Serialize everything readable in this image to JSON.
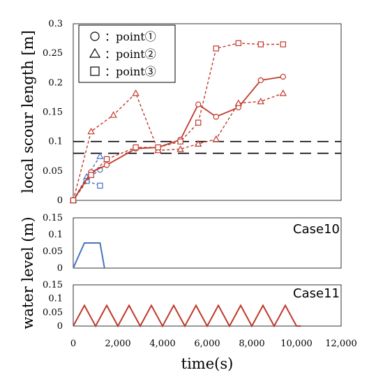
{
  "chart_data": [
    {
      "type": "scatter",
      "ylabel": "local scour length [m]",
      "xlim": [
        0,
        12000
      ],
      "ylim": [
        0,
        0.3
      ],
      "yticks": [
        0,
        0.05,
        0.1,
        0.15,
        0.2,
        0.25,
        0.3
      ],
      "ytick_labels": [
        "0",
        "0.05",
        "0.1",
        "0.15",
        "0.2",
        "0.25",
        "0.3"
      ],
      "reference_lines": [
        0.1,
        0.08
      ],
      "legend": {
        "placement": "top-left",
        "entries": [
          {
            "marker": "circle",
            "label": "：point①"
          },
          {
            "marker": "triangle",
            "label": "：point②"
          },
          {
            "marker": "square",
            "label": "：point③"
          }
        ]
      },
      "series": [
        {
          "group": "Case10",
          "point": 1,
          "marker": "circle",
          "line": "dashed",
          "color": "#4472c4",
          "x": [
            0,
            600,
            1200
          ],
          "y": [
            0,
            0.036,
            0.052
          ]
        },
        {
          "group": "Case10",
          "point": 2,
          "marker": "triangle",
          "line": "dashed",
          "color": "#4472c4",
          "x": [
            0,
            600,
            1200
          ],
          "y": [
            0,
            0.04,
            0.075
          ]
        },
        {
          "group": "Case10",
          "point": 3,
          "marker": "square",
          "line": "dashed",
          "color": "#4472c4",
          "x": [
            0,
            600,
            1200
          ],
          "y": [
            0,
            0.033,
            0.025
          ]
        },
        {
          "group": "Case11",
          "point": 1,
          "marker": "circle",
          "line": "solid",
          "color": "#c0392b",
          "x": [
            0,
            800,
            1500,
            2800,
            3800,
            4800,
            5600,
            6400,
            7400,
            8400,
            9400
          ],
          "y": [
            0,
            0.048,
            0.06,
            0.088,
            0.09,
            0.103,
            0.163,
            0.142,
            0.158,
            0.204,
            0.21
          ]
        },
        {
          "group": "Case11",
          "point": 2,
          "marker": "triangle",
          "line": "dashed",
          "color": "#c0392b",
          "x": [
            0,
            800,
            1800,
            2800,
            3800,
            4800,
            5600,
            6400,
            7400,
            8400,
            9400
          ],
          "y": [
            0,
            0.117,
            0.145,
            0.182,
            0.085,
            0.087,
            0.096,
            0.104,
            0.165,
            0.168,
            0.182
          ]
        },
        {
          "group": "Case11",
          "point": 3,
          "marker": "square",
          "line": "dashed",
          "color": "#c0392b",
          "x": [
            0,
            800,
            1500,
            2800,
            3800,
            4800,
            5600,
            6400,
            7400,
            8400,
            9400
          ],
          "y": [
            0,
            0.043,
            0.07,
            0.09,
            0.09,
            0.1,
            0.132,
            0.258,
            0.267,
            0.265,
            0.265
          ]
        }
      ]
    },
    {
      "type": "line",
      "label": "Case10",
      "color": "#4472c4",
      "ylim": [
        0,
        0.15
      ],
      "yticks": [
        0,
        0.05,
        0.1,
        0.15
      ],
      "ytick_labels": [
        "0",
        "0.05",
        "0.1",
        "0.15"
      ],
      "x": [
        0,
        500,
        1000,
        1200,
        1400
      ],
      "y": [
        0,
        0.075,
        0.075,
        0.075,
        0
      ]
    },
    {
      "type": "line",
      "label": "Case11",
      "color": "#c0392b",
      "ylim": [
        0,
        0.15
      ],
      "yticks": [
        0,
        0.05,
        0.1,
        0.15
      ],
      "ytick_labels": [
        "0",
        "0.05",
        "0.1",
        "0.15"
      ],
      "cycle_period": 1000,
      "cycles": 10,
      "peak": 0.075,
      "x_end": 10200
    }
  ],
  "shared_x_axis": {
    "xlabel": "time(s)",
    "xlim": [
      0,
      12000
    ],
    "xticks": [
      0,
      2000,
      4000,
      6000,
      8000,
      10000,
      12000
    ],
    "xtick_labels": [
      "0",
      "2,000",
      "4,000",
      "6,000",
      "8,000",
      "10,000",
      "12,000"
    ]
  },
  "shared_ylabel": "water level (m)"
}
